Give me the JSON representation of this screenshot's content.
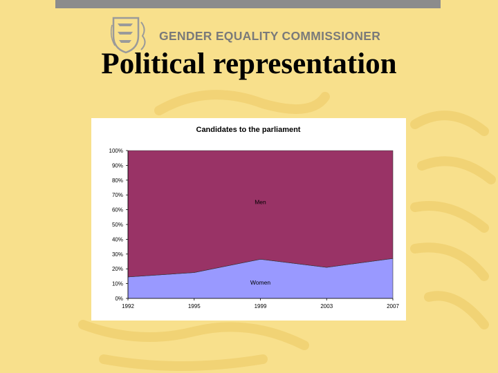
{
  "header": {
    "org_name": "GENDER EQUALITY COMMISSIONER",
    "logo": "estonian-coat-of-arms-icon"
  },
  "slide": {
    "title": "Political representation"
  },
  "colors": {
    "background": "#f8e08c",
    "men": "#993366",
    "women": "#9999ff"
  },
  "chart_data": {
    "type": "area",
    "stacked": true,
    "percent": true,
    "title": "Candidates to the parliament",
    "xlabel": "",
    "ylabel": "",
    "x": [
      "1992",
      "1995",
      "1999",
      "2003",
      "2007"
    ],
    "ylim": [
      0,
      100
    ],
    "yticks": [
      "0%",
      "10%",
      "20%",
      "30%",
      "40%",
      "50%",
      "60%",
      "70%",
      "80%",
      "90%",
      "100%"
    ],
    "series": [
      {
        "name": "Women",
        "values": [
          14.5,
          17.5,
          26.5,
          21,
          27
        ]
      },
      {
        "name": "Men",
        "values": [
          85.5,
          82.5,
          73.5,
          79,
          73
        ]
      }
    ],
    "grid": false,
    "legend": "none"
  }
}
